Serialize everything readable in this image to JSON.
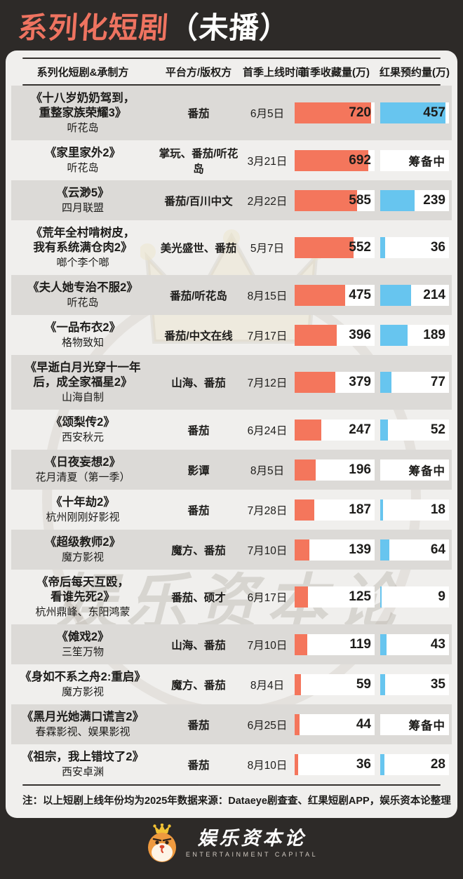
{
  "title": {
    "main": "系列化短剧",
    "suffix": "（未播）"
  },
  "chart_data": {
    "type": "table",
    "title": "系列化短剧（未播）",
    "columns": [
      "系列化短剧&承制方",
      "平台方/版权方",
      "首季上线时间",
      "首季收藏量(万)",
      "红果预约量(万)"
    ],
    "bar_style": {
      "favorites": {
        "color": "#f4765c",
        "axis_max": 750
      },
      "reservations": {
        "color": "#67c5ef",
        "axis_max": 480
      }
    },
    "pending_label": "筹备中",
    "rows": [
      {
        "name_lines": [
          "《十八岁奶奶驾到，",
          "重整家族荣耀3》"
        ],
        "producer": "听花岛",
        "platform": "番茄",
        "date": "6月5日",
        "favorites": 720,
        "reservations": 457
      },
      {
        "name_lines": [
          "《家里家外2》"
        ],
        "producer": "听花岛",
        "platform": "掌玩、番茄/听花岛",
        "date": "3月21日",
        "favorites": 692,
        "reservations": "筹备中"
      },
      {
        "name_lines": [
          "《云渺5》"
        ],
        "producer": "四月联盟",
        "platform": "番茄/百川中文",
        "date": "2月22日",
        "favorites": 585,
        "reservations": 239
      },
      {
        "name_lines": [
          "《荒年全村啃树皮，",
          "我有系统满仓肉2》"
        ],
        "producer": "啷个李个啷",
        "platform": "美光盛世、番茄",
        "date": "5月7日",
        "favorites": 552,
        "reservations": 36
      },
      {
        "name_lines": [
          "《夫人她专治不服2》"
        ],
        "producer": "听花岛",
        "platform": "番茄/听花岛",
        "date": "8月15日",
        "favorites": 475,
        "reservations": 214
      },
      {
        "name_lines": [
          "《一品布衣2》"
        ],
        "producer": "格物致知",
        "platform": "番茄/中文在线",
        "date": "7月17日",
        "favorites": 396,
        "reservations": 189
      },
      {
        "name_lines": [
          "《早逝白月光穿十一年",
          "后，成全家福星2》"
        ],
        "producer": "山海自制",
        "platform": "山海、番茄",
        "date": "7月12日",
        "favorites": 379,
        "reservations": 77
      },
      {
        "name_lines": [
          "《颂梨传2》"
        ],
        "producer": "西安秋元",
        "platform": "番茄",
        "date": "6月24日",
        "favorites": 247,
        "reservations": 52
      },
      {
        "name_lines": [
          "《日夜妄想2》"
        ],
        "producer": "花月清夏（第一季）",
        "platform": "影谭",
        "date": "8月5日",
        "favorites": 196,
        "reservations": "筹备中"
      },
      {
        "name_lines": [
          "《十年劫2》"
        ],
        "producer": "杭州刚刚好影视",
        "platform": "番茄",
        "date": "7月28日",
        "favorites": 187,
        "reservations": 18
      },
      {
        "name_lines": [
          "《超级教师2》"
        ],
        "producer": "魔方影视",
        "platform": "魔方、番茄",
        "date": "7月10日",
        "favorites": 139,
        "reservations": 64
      },
      {
        "name_lines": [
          "《帝后每天互殴，",
          "看谁先死2》"
        ],
        "producer": "杭州鼎峰、东阳鸿蒙",
        "platform": "番茄、硕才",
        "date": "6月17日",
        "favorites": 125,
        "reservations": 9
      },
      {
        "name_lines": [
          "《傩戏2》"
        ],
        "producer": "三笙万物",
        "platform": "山海、番茄",
        "date": "7月10日",
        "favorites": 119,
        "reservations": 43
      },
      {
        "name_lines": [
          "《身如不系之舟2:重启》"
        ],
        "producer": "魔方影视",
        "platform": "魔方、番茄",
        "date": "8月4日",
        "favorites": 59,
        "reservations": 35
      },
      {
        "name_lines": [
          "《黑月光她满口谎言2》"
        ],
        "producer": "春霖影视、娱果影视",
        "platform": "番茄",
        "date": "6月25日",
        "favorites": 44,
        "reservations": "筹备中"
      },
      {
        "name_lines": [
          "《祖宗，我上错坟了2》"
        ],
        "producer": "西安卓渊",
        "platform": "番茄",
        "date": "8月10日",
        "favorites": 36,
        "reservations": 28
      }
    ]
  },
  "footer": {
    "note": "注：以上短剧上线年份均为2025年",
    "source": "数据来源：Dataeye剧查查、红果短剧APP，娱乐资本论整理"
  },
  "watermark": {
    "en": "ENTERTAINMENT CAPITAL",
    "cn": "娱乐资本论"
  },
  "logo": {
    "name": "娱乐资本论",
    "subtitle": "ENTERTAINMENT CAPITAL"
  },
  "colors": {
    "background": "#2d2a28",
    "title_accent": "#ee7360",
    "card": "#f0efed",
    "row_alt": "#dcdad7",
    "bar_orange": "#f4765c",
    "bar_blue": "#67c5ef"
  }
}
